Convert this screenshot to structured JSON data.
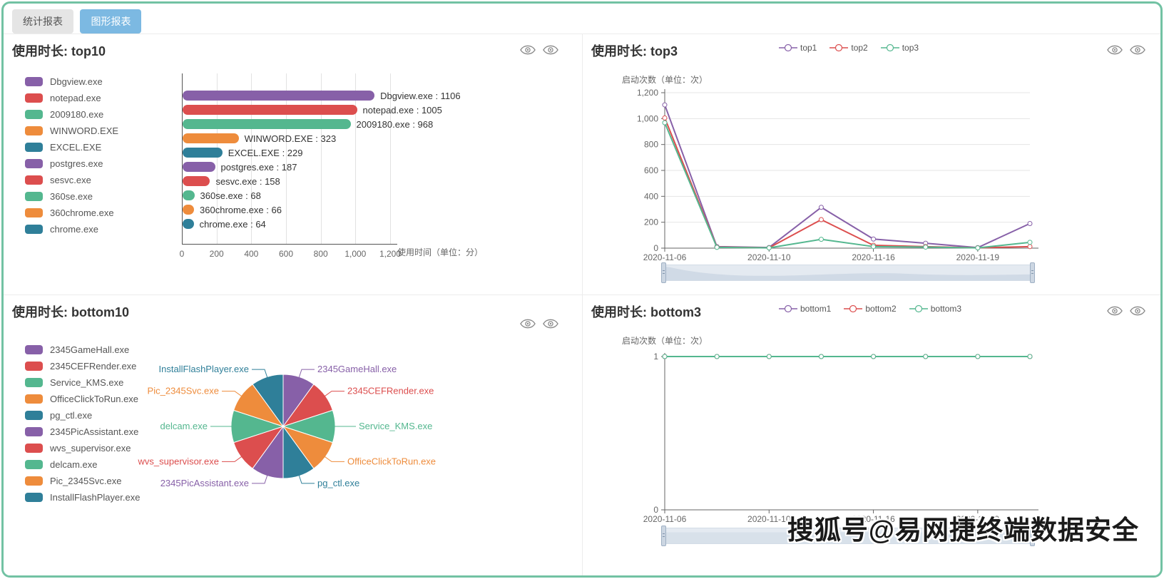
{
  "page": {
    "tabs": [
      {
        "label": "统计报表",
        "active": false
      },
      {
        "label": "图形报表",
        "active": true
      }
    ],
    "watermark": "搜狐号@易网捷终端数据安全"
  },
  "colors": {
    "palette": [
      "#8760a8",
      "#dc4e4e",
      "#54b78f",
      "#ee8c3c",
      "#2f7f99"
    ],
    "tab_active_bg": "#7cb9e2",
    "tab_inactive_bg": "#e5e5e5",
    "page_border": "#72c2a3",
    "grid_line": "#e2e2e2",
    "axis_line": "#666666",
    "axis_text": "#666666",
    "datazoom_bg": "#e4eaf1",
    "datazoom_handle": "#ccd6e2"
  },
  "chart_data": [
    {
      "type": "bar",
      "orientation": "horizontal",
      "title": "使用时长: top10",
      "categories": [
        "Dbgview.exe",
        "notepad.exe",
        "2009180.exe",
        "WINWORD.EXE",
        "EXCEL.EXE",
        "postgres.exe",
        "sesvc.exe",
        "360se.exe",
        "360chrome.exe",
        "chrome.exe"
      ],
      "values": [
        1106,
        1005,
        968,
        323,
        229,
        187,
        158,
        68,
        66,
        64
      ],
      "xlabel": "使用时间（单位：分）",
      "xlim": [
        0,
        1200
      ],
      "xticks": [
        "0",
        "200",
        "400",
        "600",
        "800",
        "1,000",
        "1,200"
      ],
      "legend_position": "left",
      "grid": true
    },
    {
      "type": "line",
      "title": "使用时长: top3",
      "x_count": 8,
      "x_tick_labels": [
        {
          "index": 0,
          "label": "2020-11-06"
        },
        {
          "index": 2,
          "label": "2020-11-10"
        },
        {
          "index": 4,
          "label": "2020-11-16"
        },
        {
          "index": 6,
          "label": "2020-11-19"
        }
      ],
      "series": [
        {
          "name": "top1",
          "values": [
            1106,
            12,
            5,
            315,
            70,
            38,
            4,
            190
          ]
        },
        {
          "name": "top2",
          "values": [
            1005,
            8,
            3,
            220,
            22,
            12,
            3,
            12
          ]
        },
        {
          "name": "top3",
          "values": [
            968,
            6,
            2,
            68,
            12,
            8,
            2,
            45
          ]
        }
      ],
      "ylabel": "启动次数（单位：次）",
      "ylim": [
        0,
        1200
      ],
      "yticks": [
        "0",
        "200",
        "400",
        "600",
        "800",
        "1,000",
        "1,200"
      ],
      "legend_position": "top",
      "has_datazoom": true,
      "grid": true
    },
    {
      "type": "pie",
      "title": "使用时长: bottom10",
      "labels": [
        "2345GameHall.exe",
        "2345CEFRender.exe",
        "Service_KMS.exe",
        "OfficeClickToRun.exe",
        "pg_ctl.exe",
        "2345PicAssistant.exe",
        "wvs_supervisor.exe",
        "delcam.exe",
        "Pic_2345Svc.exe",
        "InstallFlashPlayer.exe"
      ],
      "values": [
        1,
        1,
        1,
        1,
        1,
        1,
        1,
        1,
        1,
        1
      ],
      "legend_position": "left"
    },
    {
      "type": "line",
      "title": "使用时长: bottom3",
      "x_count": 8,
      "x_tick_labels": [
        {
          "index": 0,
          "label": "2020-11-06"
        },
        {
          "index": 2,
          "label": "2020-11-10"
        },
        {
          "index": 4,
          "label": "2020-11-16"
        },
        {
          "index": 6,
          "label": "2020-11-19"
        }
      ],
      "series": [
        {
          "name": "bottom1",
          "values": [
            1,
            1,
            1,
            1,
            1,
            1,
            1,
            1
          ]
        },
        {
          "name": "bottom2",
          "values": [
            1,
            1,
            1,
            1,
            1,
            1,
            1,
            1
          ]
        },
        {
          "name": "bottom3",
          "values": [
            1,
            1,
            1,
            1,
            1,
            1,
            1,
            1
          ]
        }
      ],
      "ylabel": "启动次数（单位：次）",
      "ylim": [
        0,
        1
      ],
      "yticks": [
        "0",
        "1"
      ],
      "legend_position": "top",
      "has_datazoom": true,
      "grid": true
    }
  ]
}
